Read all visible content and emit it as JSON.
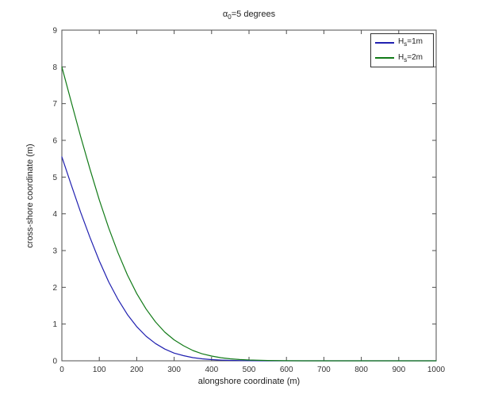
{
  "figure": {
    "background": "#ffffff",
    "title_parts": {
      "prefix": "α",
      "sub": "0",
      "rest": "=5 degrees"
    }
  },
  "style": {
    "axis_color": "#4d4d4d",
    "text_color": "#333333",
    "tick_length": 5
  },
  "chart_data": {
    "type": "line",
    "title": "alpha_0 = 5 degrees",
    "xlabel": "alongshore coordinate (m)",
    "ylabel": "cross-shore coordinate (m)",
    "xlim": [
      0,
      1000
    ],
    "ylim": [
      0,
      9
    ],
    "x_ticks": [
      0,
      100,
      200,
      300,
      400,
      500,
      600,
      700,
      800,
      900,
      1000
    ],
    "y_ticks": [
      0,
      1,
      2,
      3,
      4,
      5,
      6,
      7,
      8,
      9
    ],
    "grid": false,
    "box": true,
    "legend_position": "top-right",
    "series": [
      {
        "name": "Hs=1m",
        "label_prefix": "H",
        "label_sub": "s",
        "label_rest": "=1m",
        "color": "#2020b0",
        "x": [
          0,
          25,
          50,
          75,
          100,
          125,
          150,
          175,
          200,
          225,
          250,
          275,
          300,
          325,
          350,
          375,
          400,
          425,
          450,
          475,
          500,
          550,
          600,
          650,
          700,
          750,
          800,
          850,
          900,
          950,
          1000
        ],
        "y": [
          5.55,
          4.79,
          4.05,
          3.36,
          2.72,
          2.15,
          1.67,
          1.26,
          0.93,
          0.67,
          0.47,
          0.32,
          0.21,
          0.14,
          0.087,
          0.054,
          0.032,
          0.019,
          0.011,
          0.006,
          0.003,
          0.001,
          0,
          0,
          0,
          0,
          0,
          0,
          0,
          0,
          0
        ]
      },
      {
        "name": "Hs=2m",
        "label_prefix": "H",
        "label_sub": "s",
        "label_rest": "=2m",
        "color": "#117a17",
        "x": [
          0,
          25,
          50,
          75,
          100,
          125,
          150,
          175,
          200,
          225,
          250,
          275,
          300,
          325,
          350,
          375,
          400,
          425,
          450,
          475,
          500,
          550,
          600,
          650,
          700,
          750,
          800,
          850,
          900,
          950,
          1000
        ],
        "y": [
          8,
          7.05,
          6.11,
          5.22,
          4.38,
          3.62,
          2.94,
          2.34,
          1.83,
          1.41,
          1.06,
          0.78,
          0.57,
          0.41,
          0.28,
          0.19,
          0.13,
          0.085,
          0.055,
          0.035,
          0.021,
          0.008,
          0.003,
          0.001,
          0,
          0,
          0,
          0,
          0,
          0,
          0
        ]
      }
    ]
  }
}
